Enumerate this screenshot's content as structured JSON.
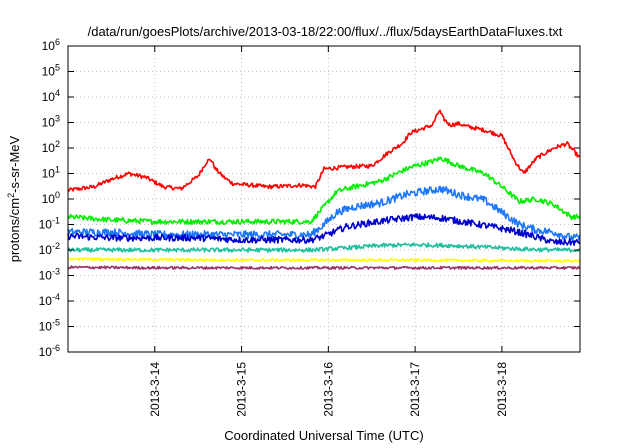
{
  "chart_data": {
    "type": "line",
    "title": "/data/run/goesPlots/archive/2013-03-18/22:00/flux/../flux/5daysEarthDataFluxes.txt",
    "xlabel": "Coordinated Universal Time (UTC)",
    "ylabel": {
      "prefix": "protons/cm",
      "sup": "2",
      "suffix": "-s-sr-MeV"
    },
    "x_ticks": [
      "2013-3-14",
      "2013-3-15",
      "2013-3-16",
      "2013-3-17",
      "2013-3-18"
    ],
    "x_range_days": [
      13.0,
      18.9
    ],
    "y_scale": "log",
    "y_ticks": [
      {
        "exp": 6,
        "base": "10",
        "sup": "6"
      },
      {
        "exp": 5,
        "base": "10",
        "sup": "5"
      },
      {
        "exp": 4,
        "base": "10",
        "sup": "4"
      },
      {
        "exp": 3,
        "base": "10",
        "sup": "3"
      },
      {
        "exp": 2,
        "base": "10",
        "sup": "2"
      },
      {
        "exp": 1,
        "base": "10",
        "sup": "1"
      },
      {
        "exp": 0,
        "base": "10",
        "sup": "0"
      },
      {
        "exp": -1,
        "base": "10",
        "sup": "-1"
      },
      {
        "exp": -2,
        "base": "10",
        "sup": "-2"
      },
      {
        "exp": -3,
        "base": "10",
        "sup": "-3"
      },
      {
        "exp": -4,
        "base": "10",
        "sup": "-4"
      },
      {
        "exp": -5,
        "base": "10",
        "sup": "-5"
      },
      {
        "exp": -6,
        "base": "10",
        "sup": "-6"
      }
    ],
    "grid": true,
    "series": [
      {
        "color": "#ff0000",
        "noise": 0.08,
        "x": [
          13.0,
          13.3,
          13.5,
          13.7,
          13.9,
          14.1,
          14.3,
          14.5,
          14.6,
          14.65,
          14.7,
          14.8,
          14.9,
          15.1,
          15.3,
          15.5,
          15.7,
          15.85,
          15.95,
          16.2,
          16.5,
          16.7,
          16.85,
          16.95,
          17.1,
          17.2,
          17.28,
          17.32,
          17.4,
          17.5,
          17.6,
          17.8,
          18.0,
          18.15,
          18.25,
          18.4,
          18.6,
          18.75,
          18.9
        ],
        "y": [
          2.2,
          3.0,
          6.0,
          10.0,
          7.0,
          3.0,
          2.5,
          8.0,
          30.0,
          35.0,
          15.0,
          7.0,
          4.0,
          3.5,
          3.0,
          3.2,
          3.5,
          3.0,
          15.0,
          18.0,
          20.0,
          70.0,
          150.0,
          400.0,
          600.0,
          800.0,
          3000.0,
          1500.0,
          800.0,
          900.0,
          700.0,
          500.0,
          300.0,
          30.0,
          10.0,
          40.0,
          100.0,
          150.0,
          40.0
        ]
      },
      {
        "color": "#00ee00",
        "noise": 0.1,
        "x": [
          13.0,
          13.5,
          14.0,
          14.5,
          15.0,
          15.5,
          15.8,
          15.95,
          16.1,
          16.3,
          16.6,
          16.9,
          17.0,
          17.2,
          17.3,
          17.5,
          17.8,
          18.0,
          18.2,
          18.4,
          18.6,
          18.8,
          18.9
        ],
        "y": [
          0.2,
          0.15,
          0.13,
          0.13,
          0.13,
          0.13,
          0.13,
          0.5,
          2.0,
          3.0,
          5.0,
          15.0,
          20.0,
          30.0,
          40.0,
          20.0,
          10.0,
          3.0,
          0.8,
          1.0,
          0.6,
          0.2,
          0.2
        ]
      },
      {
        "color": "#1e78ff",
        "noise": 0.15,
        "x": [
          13.0,
          13.5,
          14.0,
          14.5,
          15.0,
          15.5,
          15.8,
          15.95,
          16.1,
          16.3,
          16.6,
          16.9,
          17.1,
          17.3,
          17.5,
          17.8,
          18.0,
          18.2,
          18.4,
          18.6,
          18.8,
          18.9
        ],
        "y": [
          0.05,
          0.05,
          0.04,
          0.04,
          0.04,
          0.04,
          0.04,
          0.1,
          0.3,
          0.5,
          0.7,
          1.5,
          2.0,
          2.5,
          1.5,
          0.9,
          0.3,
          0.1,
          0.06,
          0.05,
          0.03,
          0.03
        ]
      },
      {
        "color": "#0000cc",
        "noise": 0.13,
        "x": [
          13.0,
          13.5,
          14.0,
          14.5,
          15.0,
          15.5,
          15.8,
          15.95,
          16.2,
          16.5,
          16.7,
          17.0,
          17.3,
          17.6,
          17.9,
          18.1,
          18.3,
          18.6,
          18.8,
          18.9
        ],
        "y": [
          0.035,
          0.03,
          0.03,
          0.03,
          0.025,
          0.025,
          0.025,
          0.035,
          0.08,
          0.12,
          0.15,
          0.2,
          0.18,
          0.12,
          0.08,
          0.06,
          0.04,
          0.02,
          0.02,
          0.02
        ]
      },
      {
        "color": "#20c0a0",
        "noise": 0.08,
        "x": [
          13.0,
          14.0,
          15.0,
          15.8,
          16.2,
          16.6,
          17.0,
          17.4,
          17.8,
          18.2,
          18.6,
          18.9
        ],
        "y": [
          0.01,
          0.01,
          0.01,
          0.01,
          0.012,
          0.015,
          0.016,
          0.015,
          0.013,
          0.011,
          0.01,
          0.01
        ]
      },
      {
        "color": "#ffff00",
        "noise": 0.05,
        "x": [
          13.0,
          14.0,
          15.0,
          16.0,
          17.0,
          18.0,
          18.9
        ],
        "y": [
          0.0045,
          0.0042,
          0.004,
          0.004,
          0.004,
          0.0038,
          0.0037
        ]
      },
      {
        "color": "#993366",
        "noise": 0.05,
        "x": [
          13.0,
          14.0,
          15.0,
          16.0,
          17.0,
          18.0,
          18.9
        ],
        "y": [
          0.0021,
          0.002,
          0.002,
          0.002,
          0.002,
          0.002,
          0.002
        ]
      }
    ]
  }
}
